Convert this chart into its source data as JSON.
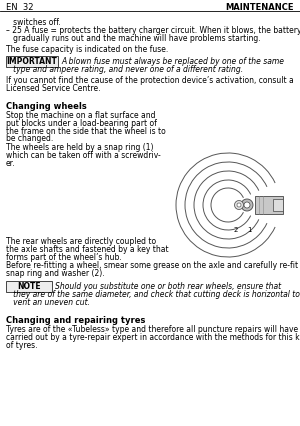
{
  "page_header_left": "EN  32",
  "page_header_right": "MAINTENANCE",
  "line1": "   switches off.",
  "line2": "– 25 A fuse = protects the battery charger circuit. When it blows, the battery",
  "line3": "   gradually runs out and the machine will have problems starting.",
  "line4": "The fuse capacity is indicated on the fuse.",
  "important_label": "IMPORTANT",
  "important_text1": "A blown fuse must always be replaced by one of the same",
  "important_text2": "   type and ampere rating, and never one of a different rating.",
  "line5": "If you cannot find the cause of the protection device’s activation, consult a",
  "line6": "Licensed Service Centre.",
  "section1_title": "Changing wheels",
  "s1_lines": [
    "Stop the machine on a flat surface and",
    "put blocks under a load-bearing part of",
    "the frame on the side that the wheel is to",
    "be changed.",
    "The wheels are held by a snap ring (1)",
    "which can be taken off with a screwdriv-",
    "er."
  ],
  "s1_lines2": [
    "The rear wheels are directly coupled to",
    "the axle shafts and fastened by a key that",
    "forms part of the wheel’s hub."
  ],
  "s1_line4a": "Before re-fitting a wheel, smear some grease on the axle and carefully re-fit the",
  "s1_line4b": "snap ring and washer (2).",
  "note_label": "NOTE",
  "note_text1": "Should you substitute one or both rear wheels, ensure that",
  "note_text2": "   they are of the same diameter, and check that cutting deck is horizontal to pre-",
  "note_text3": "   vent an uneven cut.",
  "section2_title": "Changing and repairing tyres",
  "s2_lines": [
    "Tyres are of the «Tubeless» type and therefore all puncture repairs will have to be",
    "carried out by a tyre-repair expert in accordance with the methods for this kind",
    "of tyres."
  ],
  "bg_color": "#ffffff",
  "text_color": "#000000",
  "fs_body": 5.5,
  "fs_header": 6.0,
  "fs_section": 6.0
}
